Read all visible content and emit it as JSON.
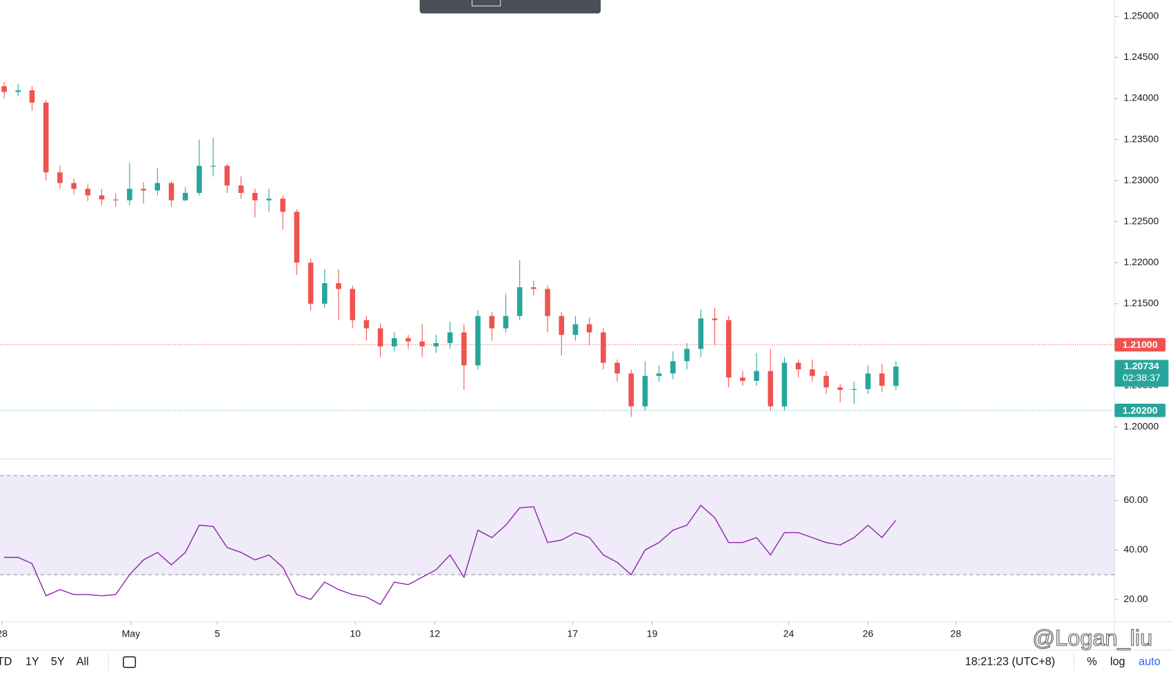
{
  "chart_data": [
    {
      "type": "candlestick",
      "xlim": [
        -0.3,
        79.7
      ],
      "xticks": [
        {
          "value": -0.15,
          "label": "28"
        },
        {
          "value": 9.1,
          "label": "May"
        },
        {
          "value": 15.3,
          "label": "5"
        },
        {
          "value": 25.2,
          "label": "10"
        },
        {
          "value": 30.9,
          "label": "12"
        },
        {
          "value": 40.8,
          "label": "17"
        },
        {
          "value": 46.5,
          "label": "19"
        },
        {
          "value": 56.3,
          "label": "24"
        },
        {
          "value": 62.0,
          "label": "26"
        },
        {
          "value": 68.3,
          "label": "28"
        }
      ],
      "ylim": [
        1.1961,
        1.252
      ],
      "yticks": [
        {
          "value": 1.25,
          "label": "1.25000"
        },
        {
          "value": 1.245,
          "label": "1.24500"
        },
        {
          "value": 1.24,
          "label": "1.24000"
        },
        {
          "value": 1.235,
          "label": "1.23500"
        },
        {
          "value": 1.23,
          "label": "1.23000"
        },
        {
          "value": 1.225,
          "label": "1.22500"
        },
        {
          "value": 1.22,
          "label": "1.22000"
        },
        {
          "value": 1.215,
          "label": "1.21500"
        },
        {
          "value": 1.21,
          "label": "1.21000"
        },
        {
          "value": 1.205,
          "label": "1.20500"
        },
        {
          "value": 1.2,
          "label": "1.20000"
        }
      ],
      "up_color": "#26a69a",
      "down_color": "#ef5350",
      "open": [
        1.2415,
        1.2408,
        1.241,
        1.2395,
        1.231,
        1.2297,
        1.229,
        1.2282,
        1.2277,
        1.2276,
        1.229,
        1.2288,
        1.2297,
        1.2276,
        1.2285,
        1.2318,
        1.2318,
        1.2294,
        1.2285,
        1.2276,
        1.2278,
        1.2262,
        1.22,
        1.215,
        1.2175,
        1.2168,
        1.213,
        1.212,
        1.2098,
        1.2108,
        1.2104,
        1.2098,
        1.2102,
        1.2115,
        1.2075,
        1.2135,
        1.212,
        1.2135,
        1.217,
        1.2168,
        1.2135,
        1.2112,
        1.2125,
        1.2115,
        1.2078,
        1.2065,
        1.2025,
        1.2062,
        1.2065,
        1.208,
        1.2095,
        1.2132,
        1.213,
        1.206,
        1.2056,
        1.2068,
        1.2025,
        1.2078,
        1.207,
        1.2062,
        1.2048,
        1.2045,
        1.2046,
        1.2065,
        1.205
      ],
      "high": [
        1.242,
        1.2418,
        1.2415,
        1.2398,
        1.2318,
        1.2302,
        1.2295,
        1.229,
        1.2284,
        1.2322,
        1.2298,
        1.2315,
        1.23,
        1.2292,
        1.235,
        1.2352,
        1.232,
        1.2305,
        1.229,
        1.229,
        1.2282,
        1.2265,
        1.2205,
        1.2192,
        1.2192,
        1.2172,
        1.2135,
        1.2126,
        1.2115,
        1.2112,
        1.2125,
        1.2112,
        1.2128,
        1.2125,
        1.2142,
        1.214,
        1.2162,
        1.2203,
        1.2178,
        1.2172,
        1.214,
        1.2135,
        1.2133,
        1.212,
        1.2082,
        1.207,
        1.208,
        1.2075,
        1.2092,
        1.2102,
        1.2143,
        1.2145,
        1.2135,
        1.2068,
        1.209,
        1.2095,
        1.2085,
        1.2082,
        1.2082,
        1.2068,
        1.2052,
        1.2055,
        1.2075,
        1.2077,
        1.208
      ],
      "low": [
        1.24,
        1.2403,
        1.2385,
        1.23,
        1.229,
        1.2283,
        1.2275,
        1.227,
        1.2268,
        1.227,
        1.2272,
        1.2282,
        1.2268,
        1.2275,
        1.2282,
        1.2305,
        1.2285,
        1.2278,
        1.2255,
        1.2262,
        1.224,
        1.2185,
        1.2142,
        1.2145,
        1.213,
        1.212,
        1.2105,
        1.2085,
        1.2092,
        1.2095,
        1.2085,
        1.209,
        1.2095,
        1.2045,
        1.207,
        1.2105,
        1.2115,
        1.213,
        1.216,
        1.2115,
        1.2087,
        1.2105,
        1.21,
        1.207,
        1.2055,
        1.2012,
        1.202,
        1.2055,
        1.2058,
        1.207,
        1.2085,
        1.21,
        1.2048,
        1.205,
        1.205,
        1.202,
        1.202,
        1.206,
        1.2055,
        1.204,
        1.203,
        1.2028,
        1.204,
        1.2042,
        1.2045
      ],
      "close": [
        1.2408,
        1.241,
        1.2395,
        1.231,
        1.2297,
        1.229,
        1.2282,
        1.2277,
        1.2276,
        1.229,
        1.2288,
        1.2297,
        1.2276,
        1.2285,
        1.2318,
        1.2318,
        1.2294,
        1.2285,
        1.2276,
        1.2278,
        1.2262,
        1.22,
        1.215,
        1.2175,
        1.2168,
        1.213,
        1.212,
        1.2098,
        1.2108,
        1.2104,
        1.2098,
        1.2102,
        1.2115,
        1.2075,
        1.2135,
        1.212,
        1.2135,
        1.217,
        1.2168,
        1.2135,
        1.2112,
        1.2125,
        1.2115,
        1.2078,
        1.2065,
        1.2025,
        1.2062,
        1.2065,
        1.208,
        1.2095,
        1.2132,
        1.213,
        1.206,
        1.2056,
        1.2068,
        1.2025,
        1.2078,
        1.207,
        1.2062,
        1.2048,
        1.2045,
        1.2046,
        1.2065,
        1.205,
        1.20734
      ],
      "hlines": [
        {
          "value": 1.21,
          "label": "1.21000",
          "color": "#ef5350"
        },
        {
          "value": 1.202,
          "label": "1.20200",
          "color": "#26a69a"
        }
      ],
      "last_price_label": "1.20734",
      "countdown": "02:38:37"
    },
    {
      "type": "line",
      "xlim": [
        -0.3,
        79.7
      ],
      "ylim": [
        11,
        76.5
      ],
      "yticks": [
        {
          "value": 60,
          "label": "60.00"
        },
        {
          "value": 40,
          "label": "40.00"
        },
        {
          "value": 20,
          "label": "20.00"
        }
      ],
      "band": [
        30,
        70
      ],
      "band_color": "#7e57c2",
      "color": "#8e24aa",
      "values": [
        37,
        37,
        34.5,
        21.5,
        24,
        22,
        22,
        21.5,
        22,
        30,
        36,
        39,
        34,
        39,
        50,
        49.5,
        41,
        39,
        36,
        38,
        33,
        22,
        20,
        27,
        24,
        22,
        21,
        18,
        27,
        26,
        29,
        32,
        38,
        29,
        48,
        45,
        50,
        57,
        57.5,
        43,
        44,
        47,
        45,
        38,
        35,
        30,
        40,
        43,
        48,
        50,
        58,
        53,
        43,
        43,
        45,
        38,
        47,
        47,
        45,
        43,
        42,
        45,
        50,
        45,
        52
      ]
    }
  ],
  "toolbar": {
    "ranges": [
      "TD",
      "1Y",
      "5Y",
      "All"
    ],
    "clock": "18:21:23 (UTC+8)",
    "options": [
      "%",
      "log",
      "auto"
    ]
  },
  "watermark": "@Logan_liu"
}
